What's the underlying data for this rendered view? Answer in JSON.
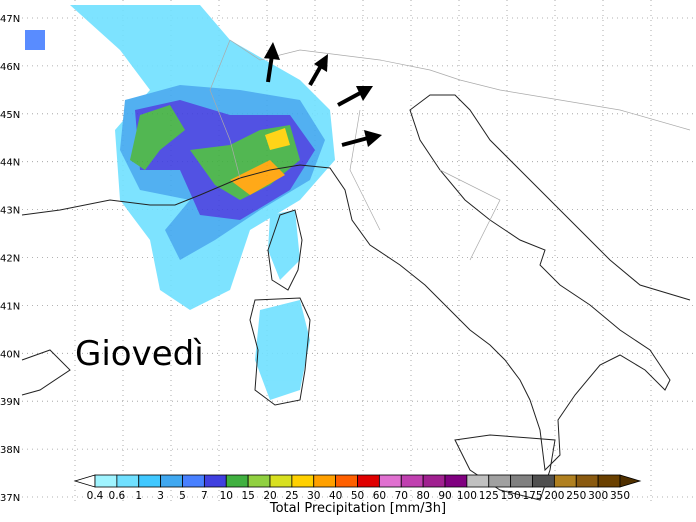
{
  "map": {
    "lat_labels": [
      "47N",
      "46N",
      "45N",
      "44N",
      "43N",
      "42N",
      "41N",
      "40N",
      "39N",
      "38N",
      "37N"
    ],
    "annotation": "Giovedì",
    "colorbar": {
      "labels": [
        "0.4",
        "0.6",
        "1",
        "3",
        "5",
        "7",
        "10",
        "15",
        "20",
        "25",
        "30",
        "40",
        "50",
        "60",
        "70",
        "80",
        "90",
        "100",
        "125",
        "150",
        "175",
        "200",
        "250",
        "300",
        "350"
      ],
      "colors": [
        "#ffffff",
        "#a0f4ff",
        "#70e0ff",
        "#40c8ff",
        "#40a8f0",
        "#4880ff",
        "#4040e0",
        "#40b040",
        "#90d040",
        "#d8e020",
        "#ffd000",
        "#ffa000",
        "#ff6000",
        "#e00000",
        "#e070d0",
        "#c040b0",
        "#a02090",
        "#800080",
        "#c0c0c0",
        "#a0a0a0",
        "#808080",
        "#505050",
        "#b08020",
        "#8a5a10",
        "#6a4000",
        "#503000"
      ],
      "title": "Total Precipitation [mm/3h]"
    }
  }
}
